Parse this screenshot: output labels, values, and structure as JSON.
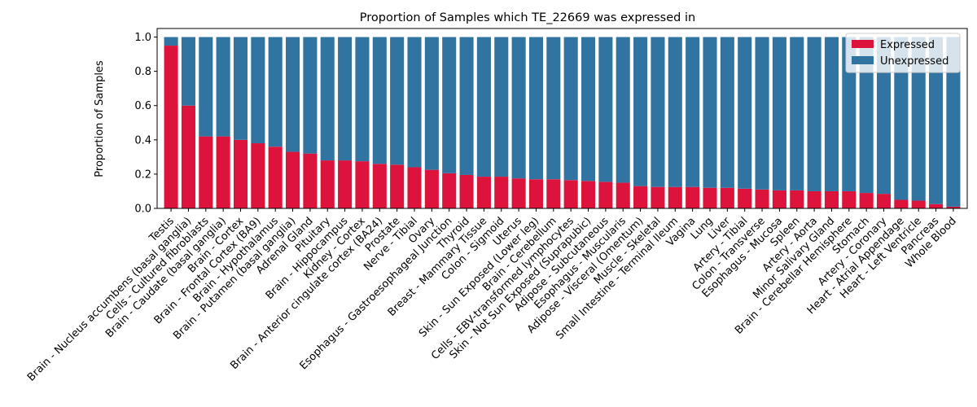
{
  "chart_data": {
    "type": "bar",
    "stacked": true,
    "title": "Proportion of Samples which TE_22669 was expressed in",
    "xlabel": "",
    "ylabel": "Proportion of Samples",
    "ylim": [
      0,
      1.05
    ],
    "yticks": [
      0.0,
      0.2,
      0.4,
      0.6,
      0.8,
      1.0
    ],
    "ytick_labels": [
      "0.0",
      "0.2",
      "0.4",
      "0.6",
      "0.8",
      "1.0"
    ],
    "grid": false,
    "legend_position": "top-right",
    "categories": [
      "Testis",
      "Brain - Nucleus accumbens (basal ganglia)",
      "Cells - Cultured fibroblasts",
      "Brain - Caudate (basal ganglia)",
      "Brain - Cortex",
      "Brain - Frontal Cortex (BA9)",
      "Brain - Hypothalamus",
      "Brain - Putamen (basal ganglia)",
      "Adrenal Gland",
      "Pituitary",
      "Brain - Hippocampus",
      "Kidney - Cortex",
      "Brain - Anterior cingulate cortex (BA24)",
      "Prostate",
      "Nerve - Tibial",
      "Ovary",
      "Esophagus - Gastroesophageal Junction",
      "Thyroid",
      "Breast - Mammary Tissue",
      "Colon - Sigmoid",
      "Uterus",
      "Skin - Sun Exposed (Lower leg)",
      "Brain - Cerebellum",
      "Cells - EBV-transformed lymphocytes",
      "Skin - Not Sun Exposed (Suprapubic)",
      "Adipose - Subcutaneous",
      "Esophagus - Muscularis",
      "Adipose - Visceral (Omentum)",
      "Muscle - Skeletal",
      "Small Intestine - Terminal Ileum",
      "Vagina",
      "Lung",
      "Liver",
      "Artery - Tibial",
      "Colon - Transverse",
      "Esophagus - Mucosa",
      "Spleen",
      "Artery - Aorta",
      "Minor Salivary Gland",
      "Brain - Cerebellar Hemisphere",
      "Stomach",
      "Artery - Coronary",
      "Heart - Atrial Appendage",
      "Heart - Left Ventricle",
      "Pancreas",
      "Whole Blood"
    ],
    "series": [
      {
        "name": "Expressed",
        "color": "#dc143c",
        "values": [
          0.95,
          0.6,
          0.42,
          0.42,
          0.4,
          0.38,
          0.36,
          0.33,
          0.32,
          0.28,
          0.28,
          0.275,
          0.26,
          0.255,
          0.24,
          0.225,
          0.205,
          0.195,
          0.185,
          0.185,
          0.175,
          0.17,
          0.17,
          0.165,
          0.16,
          0.155,
          0.15,
          0.13,
          0.125,
          0.125,
          0.125,
          0.12,
          0.12,
          0.115,
          0.11,
          0.105,
          0.105,
          0.1,
          0.1,
          0.1,
          0.09,
          0.085,
          0.05,
          0.045,
          0.025,
          0.01
        ]
      },
      {
        "name": "Unexpressed",
        "color": "#3274a1",
        "values": [
          0.05,
          0.4,
          0.58,
          0.58,
          0.6,
          0.62,
          0.64,
          0.67,
          0.68,
          0.72,
          0.72,
          0.725,
          0.74,
          0.745,
          0.76,
          0.775,
          0.795,
          0.805,
          0.815,
          0.815,
          0.825,
          0.83,
          0.83,
          0.835,
          0.84,
          0.845,
          0.85,
          0.87,
          0.875,
          0.875,
          0.875,
          0.88,
          0.88,
          0.885,
          0.89,
          0.895,
          0.895,
          0.9,
          0.9,
          0.9,
          0.91,
          0.915,
          0.95,
          0.955,
          0.975,
          0.99
        ]
      }
    ]
  }
}
